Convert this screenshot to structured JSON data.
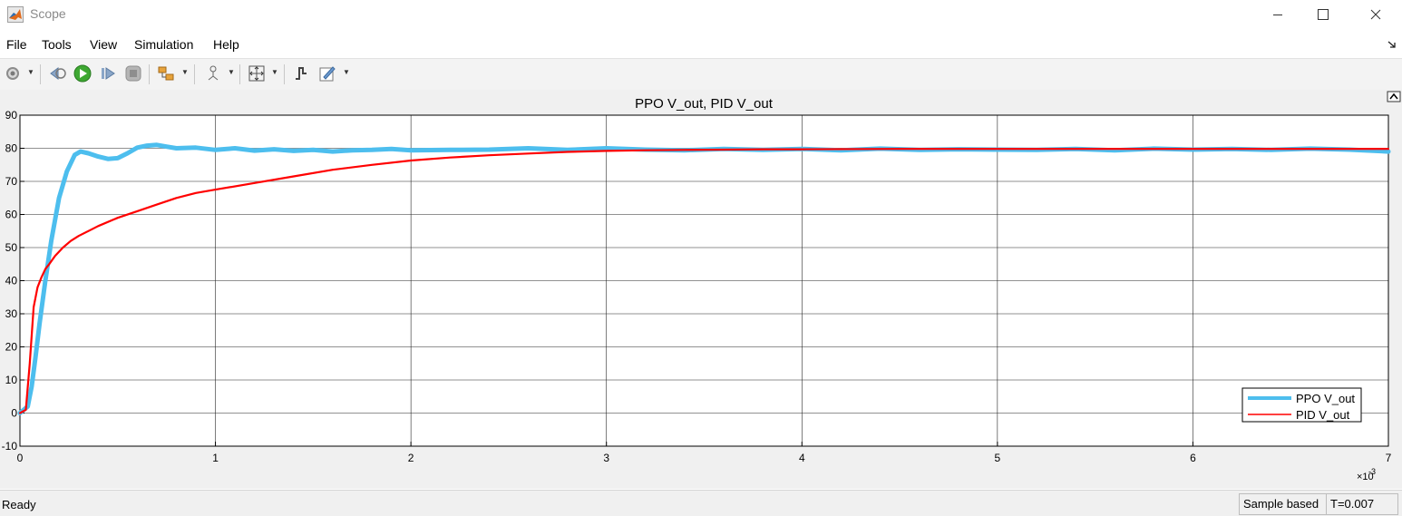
{
  "window": {
    "title": "Scope"
  },
  "menu": [
    "File",
    "Tools",
    "View",
    "Simulation",
    "Help"
  ],
  "status": {
    "text": "Ready",
    "mode": "Sample based",
    "time": "T=0.007"
  },
  "chart_data": {
    "type": "line",
    "title": "PPO V_out, PID V_out",
    "xlim": [
      0,
      7
    ],
    "ylim": [
      -10,
      90
    ],
    "x_ticks": [
      0,
      1,
      2,
      3,
      4,
      5,
      6,
      7
    ],
    "y_ticks": [
      -10,
      0,
      10,
      20,
      30,
      40,
      50,
      60,
      70,
      80,
      90
    ],
    "x_exponent_label": "×10",
    "x_exponent_power": "-3",
    "grid": true,
    "legend_position": "bottom-right",
    "series": [
      {
        "name": "PPO V_out",
        "color": "#4dbeee",
        "x": [
          0,
          0.04,
          0.06,
          0.08,
          0.1,
          0.13,
          0.16,
          0.2,
          0.24,
          0.28,
          0.31,
          0.35,
          0.4,
          0.45,
          0.5,
          0.55,
          0.6,
          0.65,
          0.7,
          0.75,
          0.8,
          0.9,
          1.0,
          1.1,
          1.2,
          1.3,
          1.4,
          1.5,
          1.6,
          1.7,
          1.8,
          1.9,
          2.0,
          2.2,
          2.4,
          2.6,
          2.8,
          3.0,
          3.2,
          3.4,
          3.6,
          3.8,
          4.0,
          4.2,
          4.4,
          4.6,
          4.8,
          5.0,
          5.2,
          5.4,
          5.6,
          5.8,
          6.0,
          6.2,
          6.4,
          6.6,
          6.8,
          7.0
        ],
        "y": [
          0,
          2,
          8,
          17,
          27,
          40,
          52,
          65,
          73,
          78,
          79,
          78.5,
          77.5,
          76.8,
          77,
          78.5,
          80.2,
          80.8,
          81,
          80.5,
          80,
          80.2,
          79.5,
          80,
          79.3,
          79.7,
          79.2,
          79.5,
          79,
          79.4,
          79.5,
          79.8,
          79.4,
          79.5,
          79.6,
          80,
          79.5,
          80,
          79.6,
          79.4,
          79.8,
          79.5,
          79.8,
          79.4,
          79.9,
          79.5,
          79.7,
          79.6,
          79.5,
          79.8,
          79.4,
          79.9,
          79.6,
          79.8,
          79.5,
          79.9,
          79.6,
          79
        ]
      },
      {
        "name": "PID V_out",
        "color": "#ff0000",
        "x": [
          0,
          0.03,
          0.05,
          0.07,
          0.09,
          0.11,
          0.13,
          0.15,
          0.18,
          0.22,
          0.26,
          0.3,
          0.35,
          0.4,
          0.5,
          0.6,
          0.7,
          0.8,
          0.9,
          1.0,
          1.2,
          1.4,
          1.6,
          1.8,
          2.0,
          2.2,
          2.4,
          2.6,
          2.8,
          3.0,
          3.2,
          3.4,
          3.6,
          3.8,
          4.0,
          4.5,
          5.0,
          5.5,
          6.0,
          6.5,
          7.0
        ],
        "y": [
          0,
          1,
          15,
          32,
          38,
          41,
          43.5,
          45,
          47.5,
          50,
          52,
          53.5,
          55,
          56.5,
          59,
          61,
          63,
          65,
          66.5,
          67.5,
          69.5,
          71.5,
          73.5,
          75,
          76.3,
          77.2,
          77.9,
          78.4,
          78.9,
          79.2,
          79.4,
          79.5,
          79.6,
          79.7,
          79.7,
          79.8,
          79.8,
          79.8,
          79.8,
          79.8,
          79.8
        ]
      }
    ]
  }
}
